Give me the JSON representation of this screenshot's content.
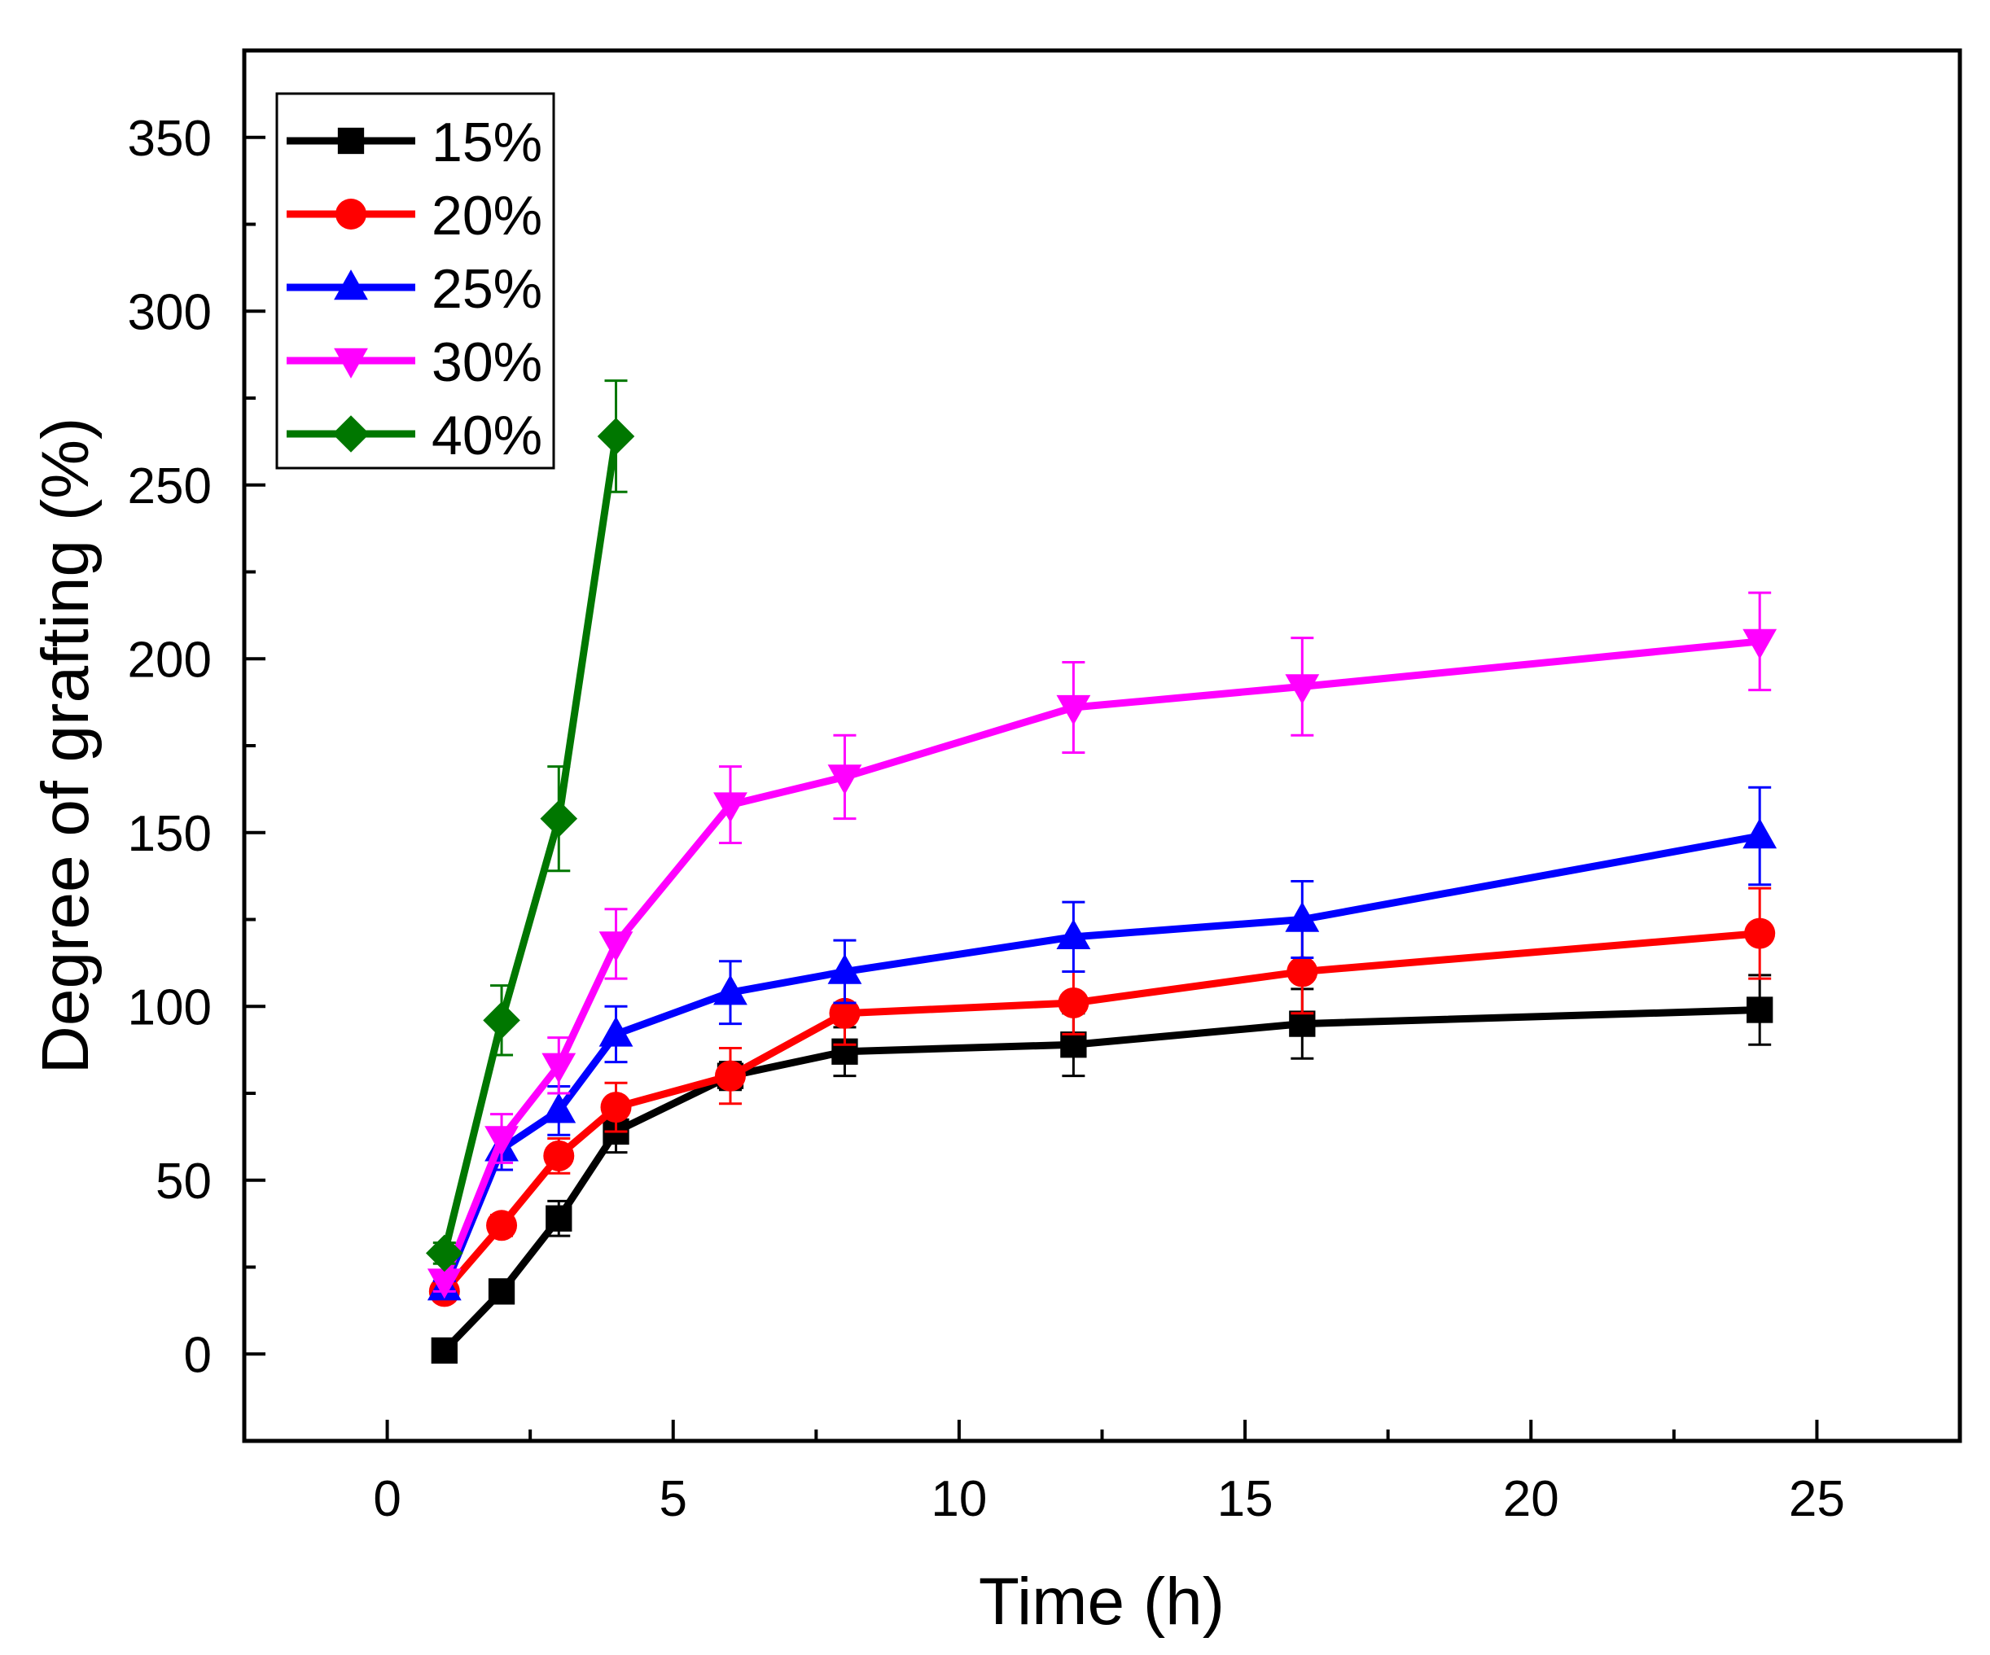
{
  "chart_data": {
    "type": "line",
    "xlabel": "Time (h)",
    "ylabel": "Degree of grafting (%)",
    "xlim": [
      -2.5,
      27.5
    ],
    "ylim": [
      -25,
      375
    ],
    "xticks": [
      0,
      5,
      10,
      15,
      20,
      25
    ],
    "yticks": [
      0,
      50,
      100,
      150,
      200,
      250,
      300,
      350
    ],
    "grid": false,
    "legend_position": "top-left",
    "error_bars": true,
    "series": [
      {
        "name": "15%",
        "color": "#000000",
        "marker": "square",
        "x": [
          1,
          2,
          3,
          4,
          6,
          8,
          12,
          16,
          24
        ],
        "y": [
          1,
          18,
          39,
          64,
          80,
          87,
          89,
          95,
          99
        ],
        "err": [
          1,
          2,
          5,
          6,
          4,
          7,
          9,
          10,
          10
        ]
      },
      {
        "name": "20%",
        "color": "#ff0000",
        "marker": "circle",
        "x": [
          1,
          2,
          3,
          4,
          6,
          8,
          12,
          16,
          24
        ],
        "y": [
          18,
          37,
          57,
          71,
          80,
          98,
          101,
          110,
          121
        ],
        "err": [
          2,
          3,
          5,
          7,
          8,
          9,
          9,
          12,
          13
        ]
      },
      {
        "name": "25%",
        "color": "#0000ff",
        "marker": "triangle-up",
        "x": [
          1,
          2,
          3,
          4,
          6,
          8,
          12,
          16,
          24
        ],
        "y": [
          19,
          59,
          70,
          92,
          104,
          110,
          120,
          125,
          149
        ],
        "err": [
          2,
          6,
          7,
          8,
          9,
          9,
          10,
          11,
          14
        ]
      },
      {
        "name": "30%",
        "color": "#ff00ff",
        "marker": "triangle-down",
        "x": [
          1,
          2,
          3,
          4,
          6,
          8,
          12,
          16,
          24
        ],
        "y": [
          21,
          62,
          83,
          118,
          158,
          166,
          186,
          192,
          205
        ],
        "err": [
          3,
          7,
          8,
          10,
          11,
          12,
          13,
          14,
          14
        ]
      },
      {
        "name": "40%",
        "color": "#007700",
        "marker": "diamond",
        "x": [
          1,
          2,
          3,
          4
        ],
        "y": [
          29,
          96,
          154,
          264
        ],
        "err": [
          3,
          10,
          15,
          16
        ]
      }
    ]
  }
}
